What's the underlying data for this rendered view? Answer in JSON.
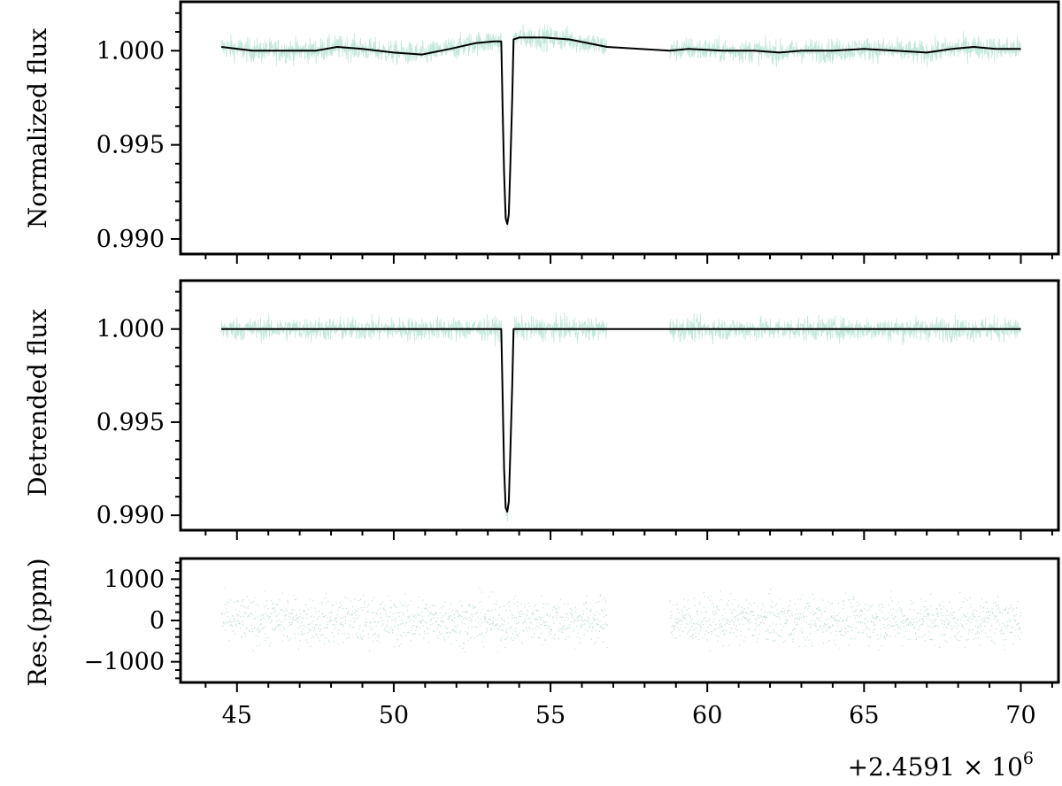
{
  "colors": {
    "data": "#8fd6bd",
    "model": "#000000",
    "residual": "#4aa587"
  },
  "chart_data": [
    {
      "type": "line",
      "name": "normalized-flux-panel",
      "ylabel": "Normalized flux",
      "xlim": [
        43.2,
        71.2
      ],
      "ylim": [
        0.9892,
        1.0026
      ],
      "yticks": [
        0.99,
        0.995,
        1.0
      ],
      "ytick_labels": [
        "0.990",
        "0.995",
        "1.000"
      ],
      "segments": [
        [
          44.5,
          56.8
        ],
        [
          58.8,
          70.0
        ]
      ],
      "scatter": 0.0006,
      "series": [
        {
          "role": "model",
          "x": [
            44.5,
            45.5,
            46.5,
            47.5,
            48.2,
            49.0,
            50.0,
            50.9,
            51.8,
            52.6,
            53.2,
            53.43,
            53.47,
            53.52,
            53.57,
            53.62,
            53.67,
            53.72,
            53.78,
            53.82,
            54.0,
            54.8,
            55.6,
            56.8,
            58.8,
            59.4,
            60.5,
            61.5,
            62.3,
            63.0,
            64.0,
            65.0,
            66.0,
            67.0,
            67.8,
            68.5,
            69.2,
            70.0
          ],
          "y": [
            1.0002,
            1.0,
            1.0,
            1.0,
            1.0002,
            1.0001,
            0.9999,
            0.9998,
            1.0001,
            1.0004,
            1.0005,
            1.0005,
            0.997,
            0.9935,
            0.9911,
            0.9908,
            0.9913,
            0.994,
            0.9975,
            1.0006,
            1.0007,
            1.0007,
            1.0006,
            1.0002,
            1.0,
            1.0001,
            1.0,
            1.0,
            0.9999,
            1.0,
            1.0,
            1.0001,
            1.0,
            0.9999,
            1.0001,
            1.0002,
            1.0001,
            1.0001
          ]
        }
      ]
    },
    {
      "type": "line",
      "name": "detrended-flux-panel",
      "ylabel": "Detrended flux",
      "xlim": [
        43.2,
        71.2
      ],
      "ylim": [
        0.9892,
        1.0026
      ],
      "yticks": [
        0.99,
        0.995,
        1.0
      ],
      "ytick_labels": [
        "0.990",
        "0.995",
        "1.000"
      ],
      "segments": [
        [
          44.5,
          56.8
        ],
        [
          58.8,
          70.0
        ]
      ],
      "scatter": 0.0006,
      "series": [
        {
          "role": "model",
          "x": [
            44.5,
            53.43,
            53.47,
            53.52,
            53.57,
            53.62,
            53.67,
            53.72,
            53.78,
            53.82,
            70.0
          ],
          "y": [
            1.0,
            1.0,
            0.9965,
            0.9925,
            0.9904,
            0.9902,
            0.9907,
            0.9935,
            0.997,
            1.0,
            1.0
          ]
        }
      ]
    },
    {
      "type": "scatter",
      "name": "residuals-panel",
      "ylabel": "Res.(ppm)",
      "xlabel_offset": "+2.4591 × 10",
      "xlabel_offset_exponent": "6",
      "xlim": [
        43.2,
        71.2
      ],
      "ylim": [
        -1500,
        1500
      ],
      "yticks": [
        -1000,
        0,
        1000
      ],
      "ytick_labels": [
        "−1000",
        "0",
        "1000"
      ],
      "xticks": [
        45,
        50,
        55,
        60,
        65,
        70
      ],
      "xtick_labels": [
        "45",
        "50",
        "55",
        "60",
        "65",
        "70"
      ],
      "segments": [
        [
          44.5,
          56.8
        ],
        [
          58.8,
          70.0
        ]
      ],
      "scatter": 600
    }
  ]
}
